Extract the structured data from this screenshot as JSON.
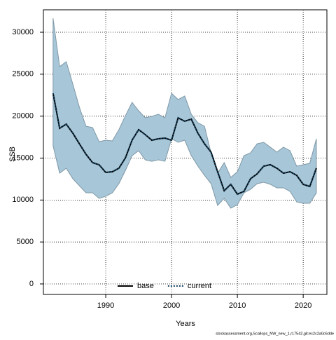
{
  "chart_data": {
    "type": "line",
    "x_label": "Years",
    "y_label": "SSB",
    "source": "stockassessment.org,Scallops_NW_new_1,r17542,git:ec2c2a0c6dde",
    "x": [
      1982,
      1983,
      1984,
      1985,
      1986,
      1987,
      1988,
      1989,
      1990,
      1991,
      1992,
      1993,
      1994,
      1995,
      1996,
      1997,
      1998,
      1999,
      2000,
      2001,
      2002,
      2003,
      2004,
      2005,
      2006,
      2007,
      2008,
      2009,
      2010,
      2011,
      2012,
      2013,
      2014,
      2015,
      2016,
      2017,
      2018,
      2019,
      2020,
      2021,
      2022
    ],
    "series": [
      {
        "name": "base",
        "color": "#000000",
        "values": [
          22730,
          18550,
          19050,
          17970,
          16700,
          15460,
          14460,
          14200,
          13290,
          13370,
          13790,
          15040,
          17130,
          18390,
          17800,
          17130,
          17300,
          17380,
          17130,
          19800,
          19390,
          19640,
          17970,
          16710,
          15710,
          13370,
          11110,
          11870,
          10700,
          11030,
          12540,
          13120,
          14040,
          14210,
          13790,
          13200,
          13370,
          12950,
          11870,
          11620,
          13800
        ]
      },
      {
        "name": "current",
        "color": "#154360",
        "band_color": "#a7c6d8",
        "values": [
          22730,
          18550,
          19050,
          17970,
          16700,
          15460,
          14460,
          14200,
          13290,
          13370,
          13790,
          15040,
          17130,
          18390,
          17800,
          17130,
          17300,
          17380,
          17130,
          19800,
          19390,
          19640,
          17970,
          16710,
          15710,
          13370,
          11110,
          11870,
          10700,
          11030,
          12540,
          13120,
          14040,
          14210,
          13790,
          13200,
          13370,
          12950,
          11870,
          11620,
          13800
        ],
        "upper": [
          31670,
          25900,
          26490,
          23820,
          21060,
          18800,
          18640,
          16960,
          17130,
          17050,
          18390,
          20060,
          21640,
          20640,
          19810,
          19970,
          20220,
          19810,
          22730,
          21980,
          22400,
          20220,
          19220,
          18800,
          15630,
          13200,
          14460,
          12700,
          13370,
          15290,
          15630,
          16710,
          16880,
          16300,
          15710,
          16300,
          15880,
          14040,
          14210,
          14370,
          17300
        ],
        "lower": [
          16460,
          13200,
          13790,
          12540,
          11700,
          10860,
          10860,
          10200,
          10450,
          10860,
          11950,
          13540,
          15290,
          15880,
          14790,
          14620,
          14790,
          14620,
          17300,
          16880,
          17130,
          15290,
          14040,
          12950,
          11950,
          9360,
          10200,
          9030,
          9440,
          10860,
          11280,
          11950,
          12120,
          11870,
          11450,
          11450,
          11030,
          9780,
          9610,
          9610,
          10860
        ]
      }
    ],
    "xlim": [
      1980.53,
      2023.6
    ],
    "xticks": [
      1990,
      2000,
      2010,
      2020
    ],
    "ylim": [
      -1253,
      32675
    ],
    "yticks": [
      0,
      5000,
      10000,
      15000,
      20000,
      25000,
      30000
    ],
    "grid": true,
    "legend": "bottom"
  }
}
